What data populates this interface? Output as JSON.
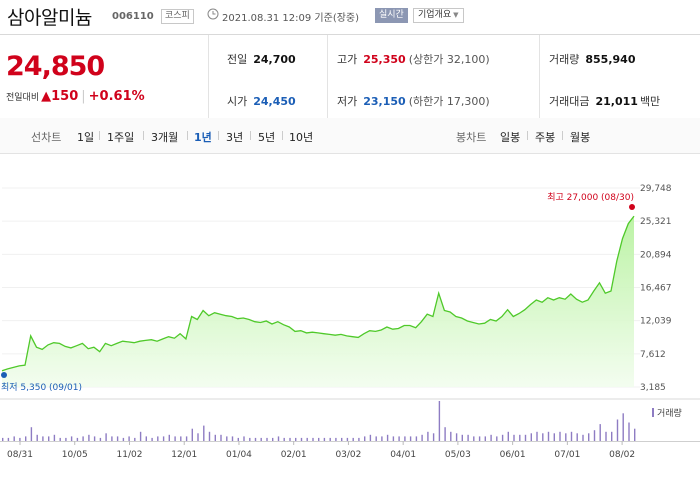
{
  "header": {
    "name": "삼아알미늄",
    "code": "006110",
    "market": "코스피",
    "clock_icon": "clock-icon",
    "asof": "2021.08.31 12:09 기준(장중)",
    "realtime": "실시간",
    "company_info": "기업개요"
  },
  "quote": {
    "price": "24,850",
    "change_label": "전일대비",
    "change_value": "150",
    "change_pct": "+0.61%",
    "prev_close_label": "전일",
    "prev_close": "24,700",
    "high_label": "고가",
    "high": "25,350",
    "upper_limit": "(상한가 32,100)",
    "volume_label": "거래량",
    "volume": "855,940",
    "open_label": "시가",
    "open": "24,450",
    "low_label": "저가",
    "low": "23,150",
    "lower_limit": "(하한가 17,300)",
    "trade_value_label": "거래대금",
    "trade_value": "21,011",
    "trade_value_unit": "백만",
    "colors": {
      "up": "#d0021b",
      "down": "#1b5eb6"
    }
  },
  "tabs": {
    "line_label": "선차트",
    "line_items": [
      "1일",
      "1주일",
      "3개월",
      "1년",
      "3년",
      "5년",
      "10년"
    ],
    "active": "1년",
    "candle_label": "봉차트",
    "candle_items": [
      "일봉",
      "주봉",
      "월봉"
    ]
  },
  "chart_data": {
    "type": "area",
    "y_ticks": [
      "29,748",
      "25,321",
      "20,894",
      "16,467",
      "12,039",
      "7,612",
      "3,185"
    ],
    "ylim": [
      3185,
      29748
    ],
    "x_labels": [
      "08/31",
      "10/05",
      "11/02",
      "12/01",
      "01/04",
      "02/01",
      "03/02",
      "04/01",
      "05/03",
      "06/01",
      "07/01",
      "08/02"
    ],
    "high_annotation": "최고 27,000 (08/30)",
    "low_annotation": "최저 5,350 (09/01)",
    "volume_label": "거래량",
    "series": [
      {
        "name": "price",
        "values": [
          5350,
          5600,
          5800,
          6000,
          6100,
          10000,
          8500,
          8200,
          8800,
          9100,
          9000,
          8600,
          8400,
          8700,
          9000,
          8300,
          8500,
          7900,
          9000,
          8700,
          9000,
          9300,
          9200,
          9100,
          9300,
          9400,
          9500,
          9300,
          9600,
          9900,
          9700,
          10300,
          9600,
          12600,
          12200,
          13400,
          12700,
          13100,
          12900,
          12700,
          12600,
          12300,
          12400,
          12200,
          11900,
          11800,
          12000,
          11600,
          11900,
          11500,
          11200,
          10600,
          10700,
          10400,
          10500,
          10400,
          10300,
          10200,
          10100,
          10200,
          10000,
          9900,
          9800,
          10300,
          10700,
          10600,
          10800,
          11200,
          10900,
          11000,
          11400,
          11400,
          11100,
          11900,
          12900,
          12600,
          15700,
          13400,
          13200,
          12600,
          12400,
          12000,
          11800,
          11600,
          11700,
          12200,
          12000,
          12600,
          13500,
          12600,
          13000,
          13500,
          14200,
          14800,
          14500,
          15100,
          14800,
          15100,
          14900,
          15600,
          14900,
          14500,
          14800,
          16000,
          17100,
          15700,
          16000,
          20000,
          23000,
          25000,
          26000
        ]
      },
      {
        "name": "volume",
        "values": [
          2,
          2,
          3,
          2,
          3,
          9,
          4,
          3,
          3,
          4,
          2,
          2,
          3,
          2,
          3,
          4,
          3,
          2,
          5,
          3,
          3,
          2,
          3,
          2,
          6,
          3,
          2,
          3,
          3,
          4,
          3,
          3,
          3,
          8,
          5,
          10,
          6,
          4,
          4,
          3,
          3,
          2,
          3,
          2,
          2,
          2,
          2,
          2,
          3,
          2,
          2,
          2,
          2,
          2,
          2,
          2,
          2,
          2,
          2,
          2,
          2,
          2,
          2,
          3,
          4,
          3,
          3,
          4,
          3,
          3,
          3,
          3,
          3,
          4,
          6,
          5,
          26,
          9,
          6,
          5,
          4,
          4,
          3,
          3,
          3,
          4,
          3,
          4,
          6,
          4,
          4,
          4,
          5,
          6,
          5,
          6,
          5,
          6,
          5,
          6,
          5,
          4,
          5,
          7,
          11,
          6,
          6,
          14,
          18,
          12,
          8
        ]
      }
    ]
  }
}
